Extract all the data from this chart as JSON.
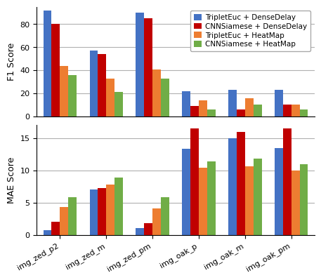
{
  "categories": [
    "img_zed_p2",
    "img_zed_m",
    "img_zed_pm",
    "img_oak_p",
    "img_oak_m",
    "img_oak_pm"
  ],
  "f1_data": {
    "TripletEuc + DenseDelay": [
      92,
      57,
      90,
      22,
      23,
      23
    ],
    "CNNSiamese + DenseDelay": [
      80,
      54,
      85,
      9,
      6,
      10
    ],
    "TripletEuc + HeatMap": [
      44,
      33,
      41,
      14,
      16,
      10
    ],
    "CNNSiamese + HeatMap": [
      36,
      21,
      33,
      6,
      10,
      6
    ]
  },
  "mae_data": {
    "TripletEuc + DenseDelay": [
      0.7,
      7.0,
      1.0,
      13.3,
      15.0,
      13.5
    ],
    "CNNSiamese + DenseDelay": [
      2.0,
      7.3,
      1.8,
      16.5,
      16.0,
      16.5
    ],
    "TripletEuc + HeatMap": [
      4.3,
      7.8,
      4.1,
      10.4,
      10.6,
      10.0
    ],
    "CNNSiamese + HeatMap": [
      5.8,
      8.9,
      5.8,
      11.4,
      11.8,
      10.9
    ]
  },
  "colors": {
    "TripletEuc + DenseDelay": "#4472C4",
    "CNNSiamese + DenseDelay": "#C00000",
    "TripletEuc + HeatMap": "#ED7D31",
    "CNNSiamese + HeatMap": "#70AD47"
  },
  "legend_labels": [
    "TripletEuc + DenseDelay",
    "CNNSiamese + DenseDelay",
    "TripletEuc + HeatMap",
    "CNNSiamese + HeatMap"
  ],
  "f1_ylabel": "F1 Score",
  "mae_ylabel": "MAE Score",
  "f1_ylim": [
    0,
    95
  ],
  "mae_ylim": [
    0,
    17
  ],
  "bar_width": 0.18,
  "grid_color": "#b0b0b0",
  "background_color": "#ffffff"
}
